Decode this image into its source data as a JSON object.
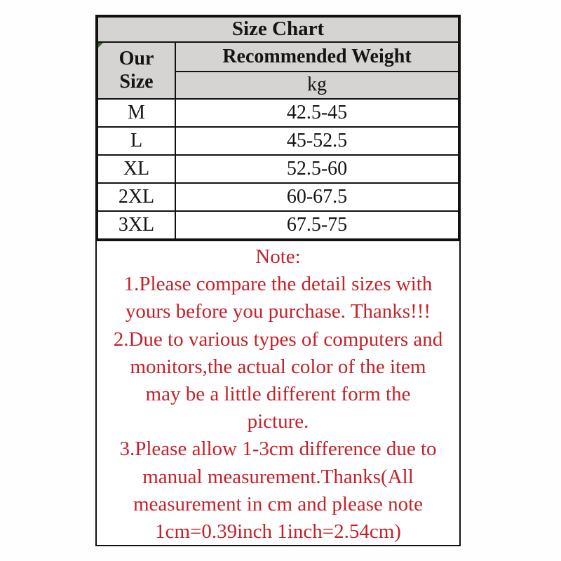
{
  "size_chart": {
    "title": "Size Chart",
    "header": {
      "size_col_line1": "Our",
      "size_col_line2": "Size",
      "weight_col_title": "Recommended Weight",
      "weight_col_unit": "kg"
    },
    "rows": [
      {
        "size": "M",
        "weight": "42.5-45"
      },
      {
        "size": "L",
        "weight": "45-52.5"
      },
      {
        "size": "XL",
        "weight": "52.5-60"
      },
      {
        "size": "2XL",
        "weight": "60-67.5"
      },
      {
        "size": "3XL",
        "weight": "67.5-75"
      }
    ]
  },
  "note": {
    "lines": [
      "Note:",
      "1.Please compare the detail sizes with",
      "yours before you purchase. Thanks!!!",
      "2.Due to various types of computers and",
      "monitors,the actual color of the item",
      "may be a little different form the",
      "picture.",
      "3.Please allow 1-3cm difference due to",
      "manual measurement.Thanks(All",
      "measurement in cm and please note",
      "1cm=0.39inch 1inch=2.54cm)"
    ]
  },
  "colors": {
    "header_background": "#d5d4d2",
    "border": "#111111",
    "note_text": "#c52129",
    "body_text": "#141414"
  },
  "chart_data": {
    "type": "table",
    "title": "Size Chart",
    "columns": [
      "Our Size",
      "Recommended Weight (kg)"
    ],
    "rows": [
      [
        "M",
        "42.5-45"
      ],
      [
        "L",
        "45-52.5"
      ],
      [
        "XL",
        "52.5-60"
      ],
      [
        "2XL",
        "60-67.5"
      ],
      [
        "3XL",
        "67.5-75"
      ]
    ],
    "notes": [
      "1.Please compare the detail sizes with yours before you purchase. Thanks!!!",
      "2.Due to various types of computers and monitors,the actual color of the item may be a little different form the picture.",
      "3.Please allow 1-3cm difference due to manual measurement.Thanks(All measurement in cm and please note 1cm=0.39inch 1inch=2.54cm)"
    ]
  }
}
